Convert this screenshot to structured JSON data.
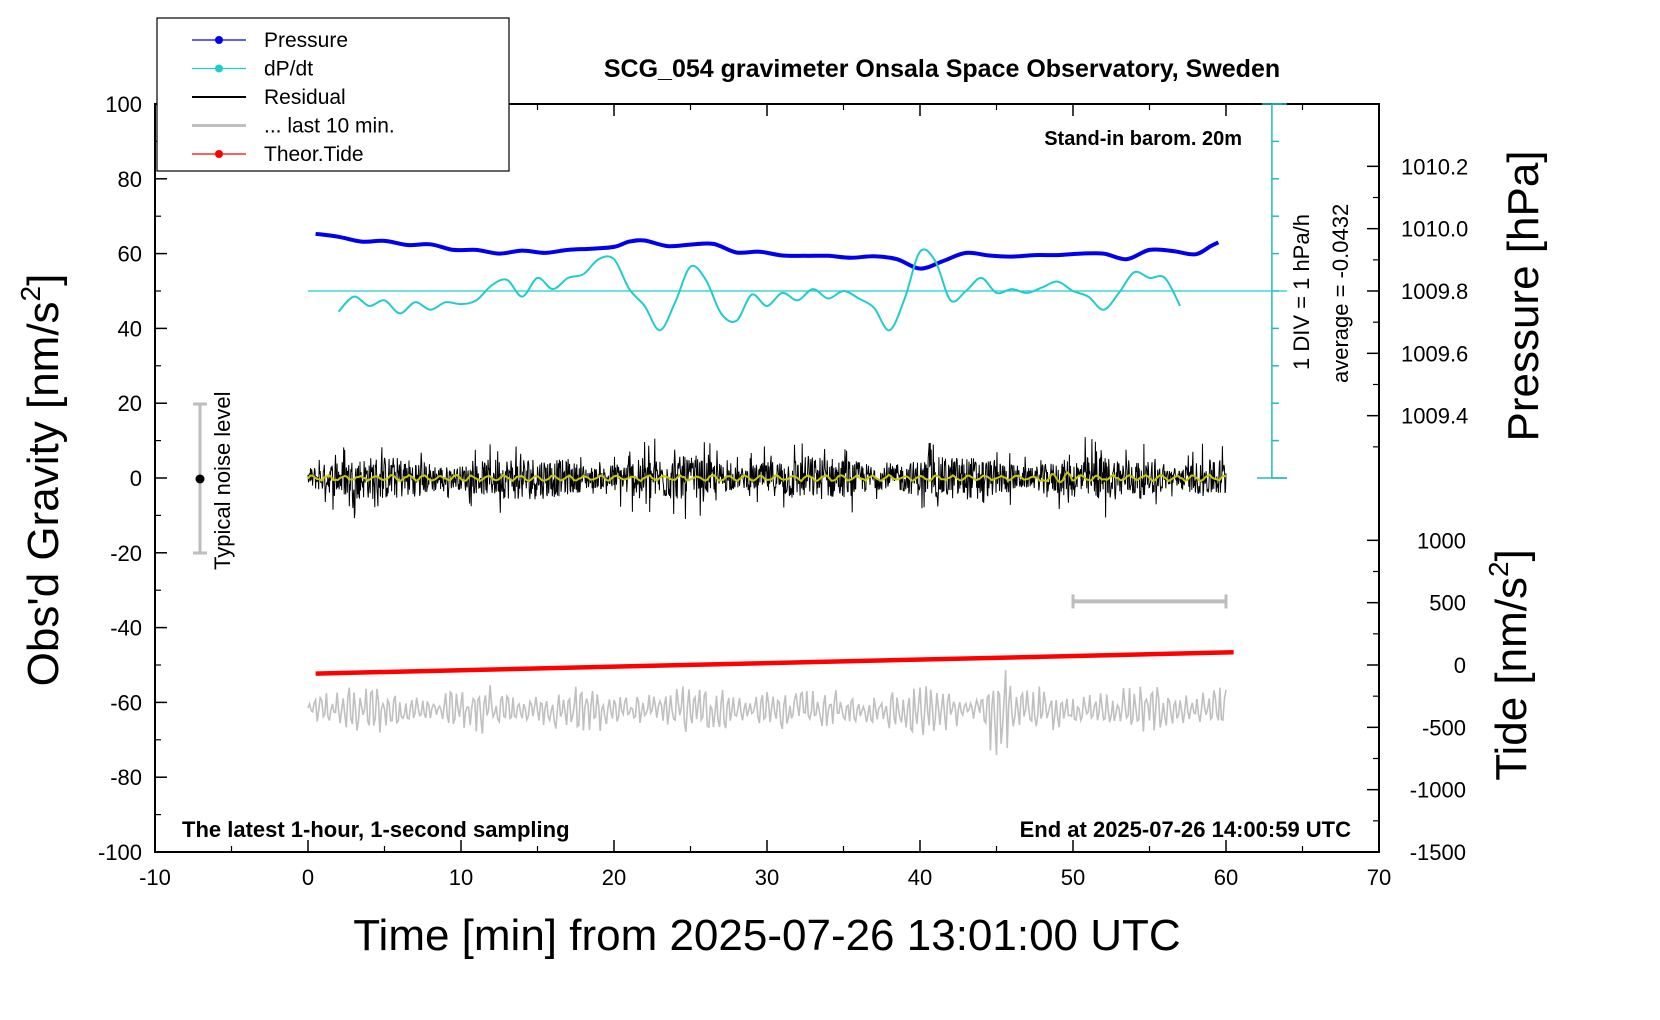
{
  "chart_data": {
    "type": "line",
    "title": "SCG_054 gravimeter Onsala Space Observatory, Sweden",
    "xlabel": "Time [min] from 2025-07-26 13:01:00 UTC",
    "ylabel_left": "Obs'd Gravity [nm/s",
    "ylabel_left_sup": "2",
    "ylabel_left_end": "]",
    "ylabel_right_top": "Pressure [hPa]",
    "ylabel_right_bottom": "Tide [nm/s",
    "ylabel_right_bottom_sup": "2",
    "ylabel_right_bottom_end": "]",
    "xlim": [
      -10,
      70
    ],
    "ylim": [
      -100,
      100
    ],
    "x_ticks": [
      "-10",
      "0",
      "10",
      "20",
      "30",
      "40",
      "50",
      "60",
      "70"
    ],
    "y_ticks": [
      "100",
      "80",
      "60",
      "40",
      "20",
      "0",
      "-20",
      "-40",
      "-60",
      "-80",
      "-100"
    ],
    "pressure_ticks": [
      "1010.2",
      "1010.0",
      "1009.8",
      "1009.6",
      "1009.4"
    ],
    "pressure_tick_values": [
      1010.2,
      1010.0,
      1009.8,
      1009.6,
      1009.4
    ],
    "tide_ticks": [
      "1000",
      "500",
      "0",
      "-500",
      "-1000",
      "-1500"
    ],
    "tide_tick_values": [
      1000,
      500,
      0,
      -500,
      -1000,
      -1500
    ],
    "grid": false,
    "legend_position": "top-left",
    "legend": [
      {
        "label": "Pressure",
        "color": "#0000ee",
        "marker": true
      },
      {
        "label": "dP/dt",
        "color": "#22cccc",
        "marker": true
      },
      {
        "label": "Residual",
        "color": "#000000",
        "marker": false
      },
      {
        "label": "... last 10 min.",
        "color": "#c0c0c0",
        "marker": false
      },
      {
        "label": "Theor.Tide",
        "color": "#ff0000",
        "marker": true
      }
    ],
    "annotations": {
      "stand_in": "Stand-in barom. 20m",
      "div_scale": "1 DIV = 1 hPa/h",
      "average": "average = -0.0432",
      "noise": "Typical noise level",
      "footer_left": "The latest 1-hour, 1-second sampling",
      "footer_right": "End at 2025-07-26 14:00:59 UTC"
    },
    "series": [
      {
        "name": "Pressure",
        "color": "#0000ee",
        "x": [
          0.5,
          2,
          3.5,
          5,
          6.5,
          8,
          9.5,
          11,
          12.5,
          14,
          15.5,
          17,
          18.5,
          20,
          21,
          22,
          23.5,
          25,
          26.5,
          28,
          29.5,
          31,
          32.5,
          34,
          35.5,
          37,
          38.5,
          40,
          41.5,
          43,
          44.5,
          46,
          47.5,
          49,
          50.5,
          52,
          53.5,
          55,
          56.5,
          58,
          59,
          59.5
        ],
        "y": [
          65.3,
          64.5,
          63.2,
          63.4,
          62.3,
          62.5,
          61.0,
          61.0,
          60.0,
          60.8,
          60.2,
          61.0,
          61.3,
          61.8,
          63.2,
          63.5,
          62.0,
          62.4,
          62.6,
          60.3,
          60.5,
          59.5,
          59.4,
          59.4,
          58.9,
          59.3,
          58.5,
          56.0,
          58.0,
          60.2,
          59.5,
          59.2,
          59.6,
          59.6,
          60.0,
          60.0,
          58.5,
          61.0,
          60.7,
          59.8,
          62.0,
          63.0
        ]
      },
      {
        "name": "dP/dt",
        "color": "#22cccc",
        "x": [
          2,
          3,
          4,
          5,
          6,
          7,
          8,
          9,
          10,
          11,
          12,
          13,
          14,
          15,
          16,
          17,
          18,
          19,
          20,
          21,
          22,
          23,
          24,
          25,
          26,
          27,
          28,
          29,
          30,
          31,
          32,
          33,
          34,
          35,
          36,
          37,
          38,
          39,
          40,
          41,
          42,
          43,
          44,
          45,
          46,
          47,
          48,
          49,
          50,
          51,
          52,
          53,
          54,
          55,
          56,
          57
        ],
        "y": [
          44.5,
          48.5,
          46.0,
          47.5,
          44.0,
          47.0,
          45.0,
          47.0,
          46.5,
          47.5,
          51.5,
          53.0,
          48.5,
          53.5,
          50.5,
          53.5,
          54.5,
          58.5,
          58.5,
          50.5,
          46.0,
          39.5,
          47.0,
          56.5,
          53.0,
          44.0,
          42.0,
          49.0,
          46.0,
          49.5,
          47.5,
          50.5,
          48.0,
          50.0,
          48.0,
          45.5,
          39.5,
          48.0,
          60.5,
          58.0,
          47.5,
          50.0,
          53.5,
          49.5,
          50.5,
          49.5,
          51.0,
          52.5,
          50.0,
          48.5,
          45.0,
          49.5,
          55.0,
          53.5,
          53.5,
          46.0
        ]
      },
      {
        "name": "Theor.Tide",
        "color": "#ff0000",
        "x": [
          0.5,
          60.5
        ],
        "y": [
          -52.3,
          -46.6
        ]
      }
    ],
    "residual": {
      "x_start": 0,
      "x_end": 60,
      "y_center": 0,
      "amplitude": 6,
      "color": "#000000"
    },
    "residual_smooth": {
      "color": "#c8c800"
    },
    "last10": {
      "x_start": 0,
      "x_end": 60,
      "y_center": -62,
      "amplitude": 5,
      "color": "#c0c0c0"
    },
    "scale_bar_gray": {
      "x_start": 50,
      "x_end": 60,
      "y": -33
    }
  }
}
